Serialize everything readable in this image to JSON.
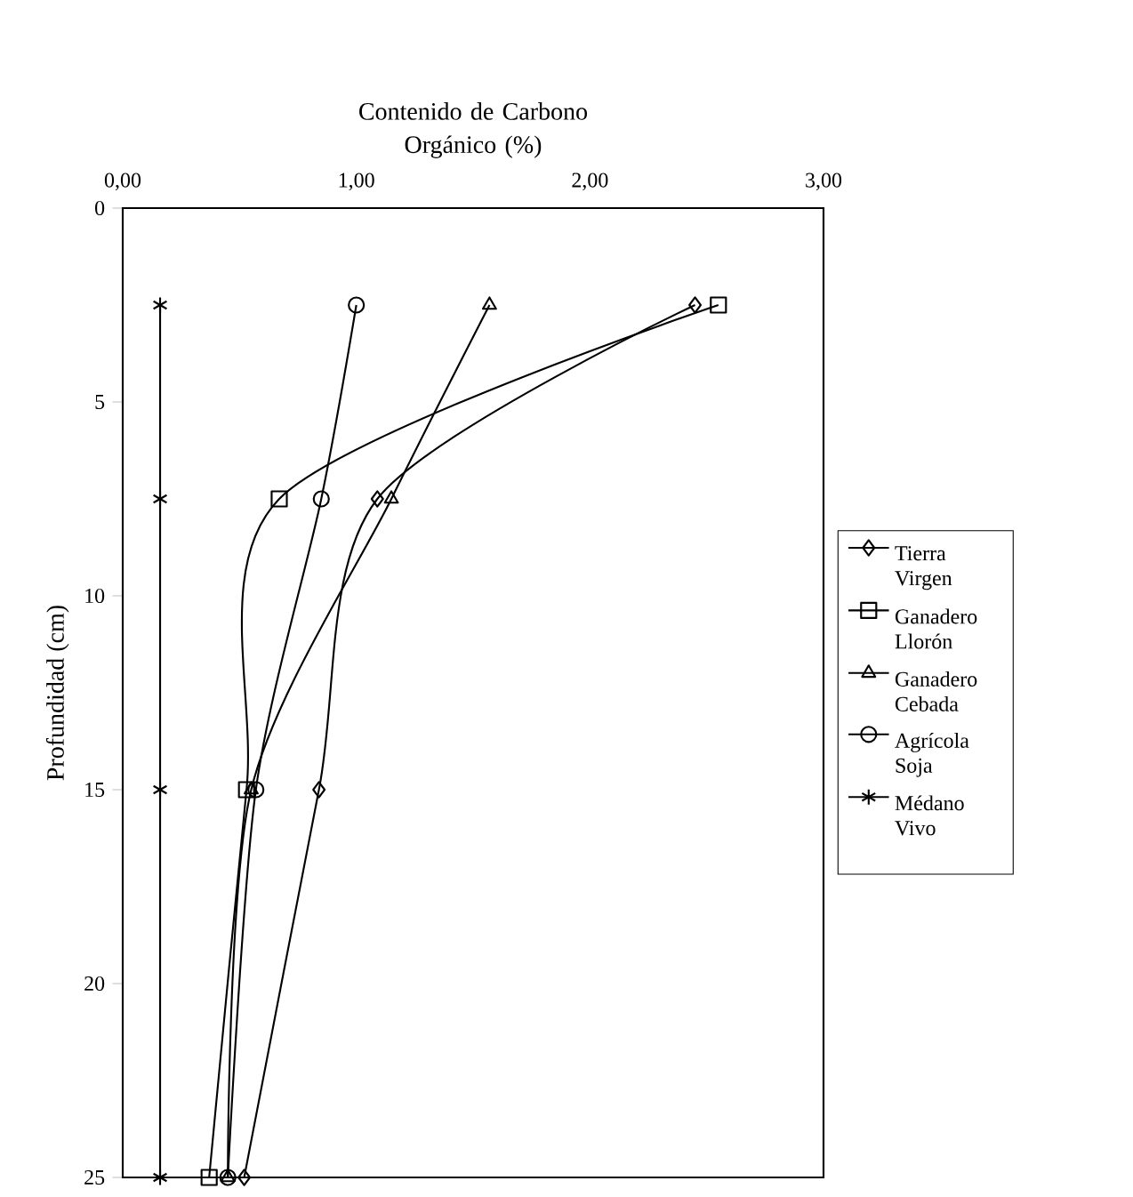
{
  "chart_data": {
    "type": "line",
    "xlabel": "Contenido de Carbono Orgánico (%)",
    "ylabel": "Profundidad (cm)",
    "xlim": [
      0,
      3
    ],
    "xticks": [
      {
        "value": 0,
        "label": "0,00"
      },
      {
        "value": 1,
        "label": "1,00"
      },
      {
        "value": 2,
        "label": "2,00"
      },
      {
        "value": 3,
        "label": "3,00"
      }
    ],
    "ylim": [
      25,
      0
    ],
    "yticks": [
      0,
      5,
      10,
      15,
      20,
      25
    ],
    "legend": "right",
    "grid": false,
    "line_style": "solid",
    "series": [
      {
        "name": "Tierra Virgen",
        "color": "#000000",
        "marker": "diamond",
        "x": [
          2.45,
          1.09,
          0.84,
          0.52
        ],
        "values": [
          2.5,
          7.5,
          15,
          25
        ]
      },
      {
        "name": "Ganadero Llorón",
        "color": "#000000",
        "marker": "square",
        "x": [
          2.55,
          0.67,
          0.53,
          0.37
        ],
        "values": [
          2.5,
          7.5,
          15,
          25
        ]
      },
      {
        "name": "Ganadero Cebada",
        "color": "#000000",
        "marker": "triangle",
        "x": [
          1.57,
          1.15,
          0.55,
          0.45
        ],
        "values": [
          2.5,
          7.5,
          15,
          25
        ]
      },
      {
        "name": "Agrícola Soja",
        "color": "#000000",
        "marker": "circle",
        "x": [
          1.0,
          0.85,
          0.57,
          0.45
        ],
        "values": [
          2.5,
          7.5,
          15,
          25
        ]
      },
      {
        "name": "Médano Vivo",
        "color": "#000000",
        "marker": "cross",
        "x": [
          0.16,
          0.16,
          0.16,
          0.16
        ],
        "values": [
          2.5,
          7.5,
          15,
          25
        ]
      }
    ]
  }
}
